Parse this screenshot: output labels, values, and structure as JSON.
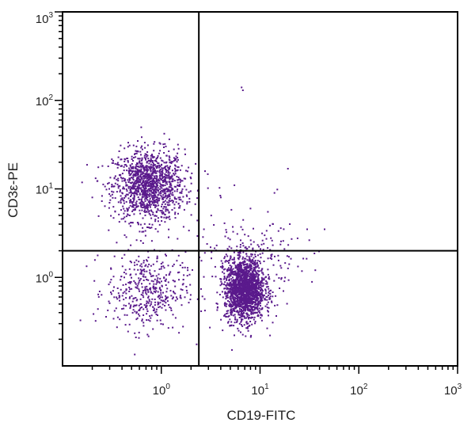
{
  "chart_data": {
    "type": "scatter",
    "title": "",
    "xlabel": "CD19-FITC",
    "ylabel": "CD3ε-PE",
    "x_scale": "log",
    "y_scale": "log",
    "xlim": [
      0.1,
      1000
    ],
    "ylim": [
      0.1,
      1000
    ],
    "x_ticks": [
      {
        "base": "10",
        "exp": "0",
        "value": 1
      },
      {
        "base": "10",
        "exp": "1",
        "value": 10
      },
      {
        "base": "10",
        "exp": "2",
        "value": 100
      },
      {
        "base": "10",
        "exp": "3",
        "value": 1000
      }
    ],
    "y_ticks": [
      {
        "base": "10",
        "exp": "0",
        "value": 1
      },
      {
        "base": "10",
        "exp": "1",
        "value": 10
      },
      {
        "base": "10",
        "exp": "2",
        "value": 100
      },
      {
        "base": "10",
        "exp": "3",
        "value": 1000
      }
    ],
    "gates": {
      "x": 2.4,
      "y": 2.0
    },
    "grid": false,
    "point_color": "#5a1a8c",
    "series": [
      {
        "populations": [
          {
            "center_x": 0.75,
            "center_y": 11,
            "spread_x": 0.18,
            "spread_y": 0.2,
            "count": 1300
          },
          {
            "center_x": 0.7,
            "center_y": 0.7,
            "spread_x": 0.2,
            "spread_y": 0.22,
            "count": 420
          },
          {
            "center_x": 7.0,
            "center_y": 0.72,
            "spread_x": 0.1,
            "spread_y": 0.17,
            "count": 1800
          },
          {
            "center_x": 9.0,
            "center_y": 1.6,
            "spread_x": 0.25,
            "spread_y": 0.18,
            "count": 180
          },
          {
            "center_x": 2.5,
            "center_y": 2.0,
            "spread_x": 0.5,
            "spread_y": 0.5,
            "count": 60
          }
        ],
        "outliers": [
          {
            "x": 6.5,
            "y": 140
          },
          {
            "x": 6.7,
            "y": 130
          },
          {
            "x": 12,
            "y": 5.5
          },
          {
            "x": 14,
            "y": 9
          },
          {
            "x": 5.5,
            "y": 11
          },
          {
            "x": 4,
            "y": 8
          },
          {
            "x": 20,
            "y": 4
          },
          {
            "x": 45,
            "y": 3.5
          },
          {
            "x": 30,
            "y": 3.5
          },
          {
            "x": 3.2,
            "y": 5
          },
          {
            "x": 8,
            "y": 6
          },
          {
            "x": 2.7,
            "y": 3.5
          }
        ]
      }
    ]
  }
}
